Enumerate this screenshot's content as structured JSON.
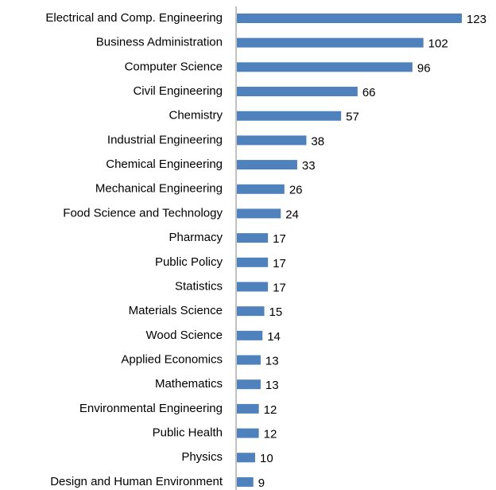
{
  "chart_data": {
    "type": "hbar",
    "categories": [
      "Electrical and Comp. Engineering",
      "Business Administration",
      "Computer Science",
      "Civil Engineering",
      "Chemistry",
      "Industrial Engineering",
      "Chemical Engineering",
      "Mechanical Engineering",
      "Food Science and Technology",
      "Pharmacy",
      "Public Policy",
      "Statistics",
      "Materials Science",
      "Wood Science",
      "Applied Economics",
      "Mathematics",
      "Environmental Engineering",
      "Public Health",
      "Physics",
      "Design and Human Environment"
    ],
    "values": [
      123,
      102,
      96,
      66,
      57,
      38,
      33,
      26,
      24,
      17,
      17,
      17,
      15,
      14,
      13,
      13,
      12,
      12,
      10,
      9
    ],
    "color": "#4f81bd"
  }
}
